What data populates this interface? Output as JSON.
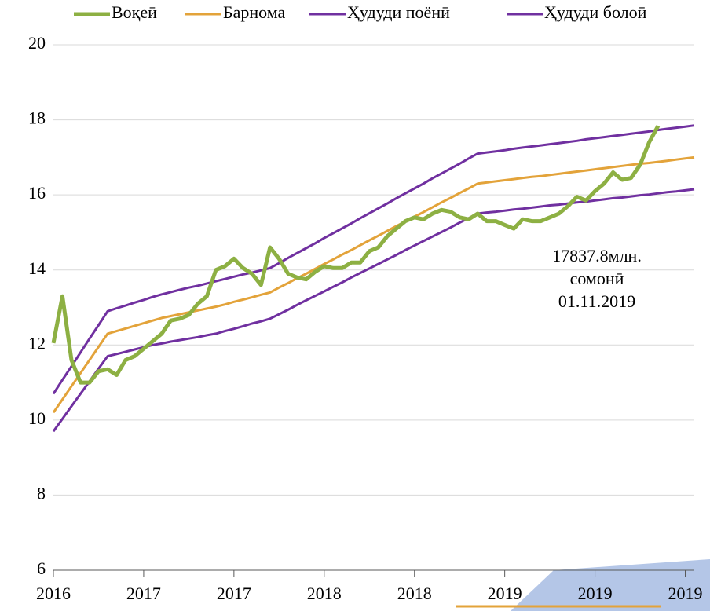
{
  "chart_data": {
    "type": "line",
    "categories": [
      "2016",
      null,
      null,
      null,
      null,
      null,
      null,
      null,
      null,
      null,
      "2017",
      null,
      null,
      null,
      null,
      null,
      null,
      null,
      null,
      null,
      "2017",
      null,
      null,
      null,
      null,
      null,
      null,
      null,
      null,
      null,
      "2018",
      null,
      null,
      null,
      null,
      null,
      null,
      null,
      null,
      null,
      "2018",
      null,
      null,
      null,
      null,
      null,
      null,
      null,
      null,
      null,
      "2019",
      null,
      null,
      null,
      null,
      null,
      null,
      null,
      null,
      null,
      "2019",
      null,
      null,
      null,
      null,
      null,
      null,
      null,
      null,
      null,
      "2019",
      null
    ],
    "series": [
      {
        "name": "Воқеӣ",
        "color": "#8db043",
        "values": [
          12.05,
          13.3,
          11.6,
          11.0,
          11.0,
          11.3,
          11.35,
          11.2,
          11.6,
          11.7,
          11.9,
          12.1,
          12.3,
          12.65,
          12.7,
          12.8,
          13.1,
          13.3,
          14.0,
          14.1,
          14.3,
          14.05,
          13.9,
          13.6,
          14.6,
          14.3,
          13.9,
          13.8,
          13.75,
          13.95,
          14.1,
          14.05,
          14.05,
          14.2,
          14.2,
          14.5,
          14.6,
          14.9,
          15.1,
          15.3,
          15.4,
          15.35,
          15.5,
          15.6,
          15.55,
          15.4,
          15.35,
          15.5,
          15.3,
          15.3,
          15.2,
          15.1,
          15.35,
          15.3,
          15.3,
          15.4,
          15.5,
          15.7,
          15.95,
          15.85,
          16.1,
          16.3,
          16.6,
          16.4,
          16.45,
          16.8,
          17.4,
          17.84,
          null,
          null,
          null,
          null
        ]
      },
      {
        "name": "Барнома",
        "color": "#e3a33a",
        "values": [
          10.2,
          10.55,
          10.9,
          11.25,
          11.6,
          11.95,
          12.3,
          12.37,
          12.44,
          12.51,
          12.58,
          12.65,
          12.72,
          12.77,
          12.82,
          12.87,
          12.92,
          12.97,
          13.02,
          13.08,
          13.15,
          13.21,
          13.27,
          13.34,
          13.4,
          13.53,
          13.65,
          13.78,
          13.9,
          14.03,
          14.16,
          14.28,
          14.41,
          14.53,
          14.66,
          14.79,
          14.91,
          15.04,
          15.17,
          15.29,
          15.42,
          15.54,
          15.67,
          15.8,
          15.92,
          16.05,
          16.17,
          16.3,
          16.33,
          16.36,
          16.39,
          16.42,
          16.45,
          16.48,
          16.5,
          16.53,
          16.56,
          16.59,
          16.62,
          16.65,
          16.68,
          16.71,
          16.74,
          16.77,
          16.8,
          16.83,
          16.85,
          16.88,
          16.91,
          16.94,
          16.97,
          17.0
        ]
      },
      {
        "name": "Ҳудуди поёнӣ",
        "color": "#7030a0",
        "values": [
          9.7,
          10.03,
          10.37,
          10.7,
          11.03,
          11.37,
          11.7,
          11.76,
          11.82,
          11.88,
          11.94,
          12.0,
          12.04,
          12.09,
          12.13,
          12.17,
          12.21,
          12.26,
          12.3,
          12.37,
          12.43,
          12.5,
          12.57,
          12.63,
          12.7,
          12.82,
          12.94,
          13.07,
          13.19,
          13.31,
          13.43,
          13.55,
          13.67,
          13.8,
          13.92,
          14.04,
          14.16,
          14.28,
          14.4,
          14.53,
          14.65,
          14.77,
          14.89,
          15.01,
          15.13,
          15.26,
          15.38,
          15.5,
          15.53,
          15.55,
          15.58,
          15.61,
          15.63,
          15.66,
          15.69,
          15.72,
          15.74,
          15.77,
          15.8,
          15.82,
          15.85,
          15.88,
          15.91,
          15.93,
          15.96,
          15.99,
          16.01,
          16.04,
          16.07,
          16.09,
          16.12,
          16.15
        ]
      },
      {
        "name": "Ҳудуди болоӣ",
        "color": "#7030a0",
        "values": [
          10.7,
          11.07,
          11.43,
          11.8,
          12.17,
          12.53,
          12.9,
          12.98,
          13.05,
          13.13,
          13.2,
          13.28,
          13.35,
          13.41,
          13.47,
          13.53,
          13.58,
          13.64,
          13.7,
          13.76,
          13.82,
          13.88,
          13.93,
          13.99,
          14.05,
          14.18,
          14.32,
          14.45,
          14.58,
          14.71,
          14.85,
          14.98,
          15.11,
          15.24,
          15.38,
          15.51,
          15.64,
          15.77,
          15.91,
          16.04,
          16.17,
          16.3,
          16.44,
          16.57,
          16.7,
          16.83,
          16.97,
          17.1,
          17.13,
          17.16,
          17.19,
          17.23,
          17.26,
          17.29,
          17.32,
          17.35,
          17.38,
          17.41,
          17.44,
          17.48,
          17.51,
          17.54,
          17.57,
          17.6,
          17.63,
          17.66,
          17.69,
          17.73,
          17.76,
          17.79,
          17.82,
          17.85
        ]
      }
    ],
    "ylim": [
      6,
      20
    ],
    "yticks": [
      6,
      8,
      10,
      12,
      14,
      16,
      18,
      20
    ],
    "grid": true,
    "legend": "top",
    "annotation": [
      "17837.8млн.",
      "сомонӣ",
      "01.11.2019"
    ]
  }
}
